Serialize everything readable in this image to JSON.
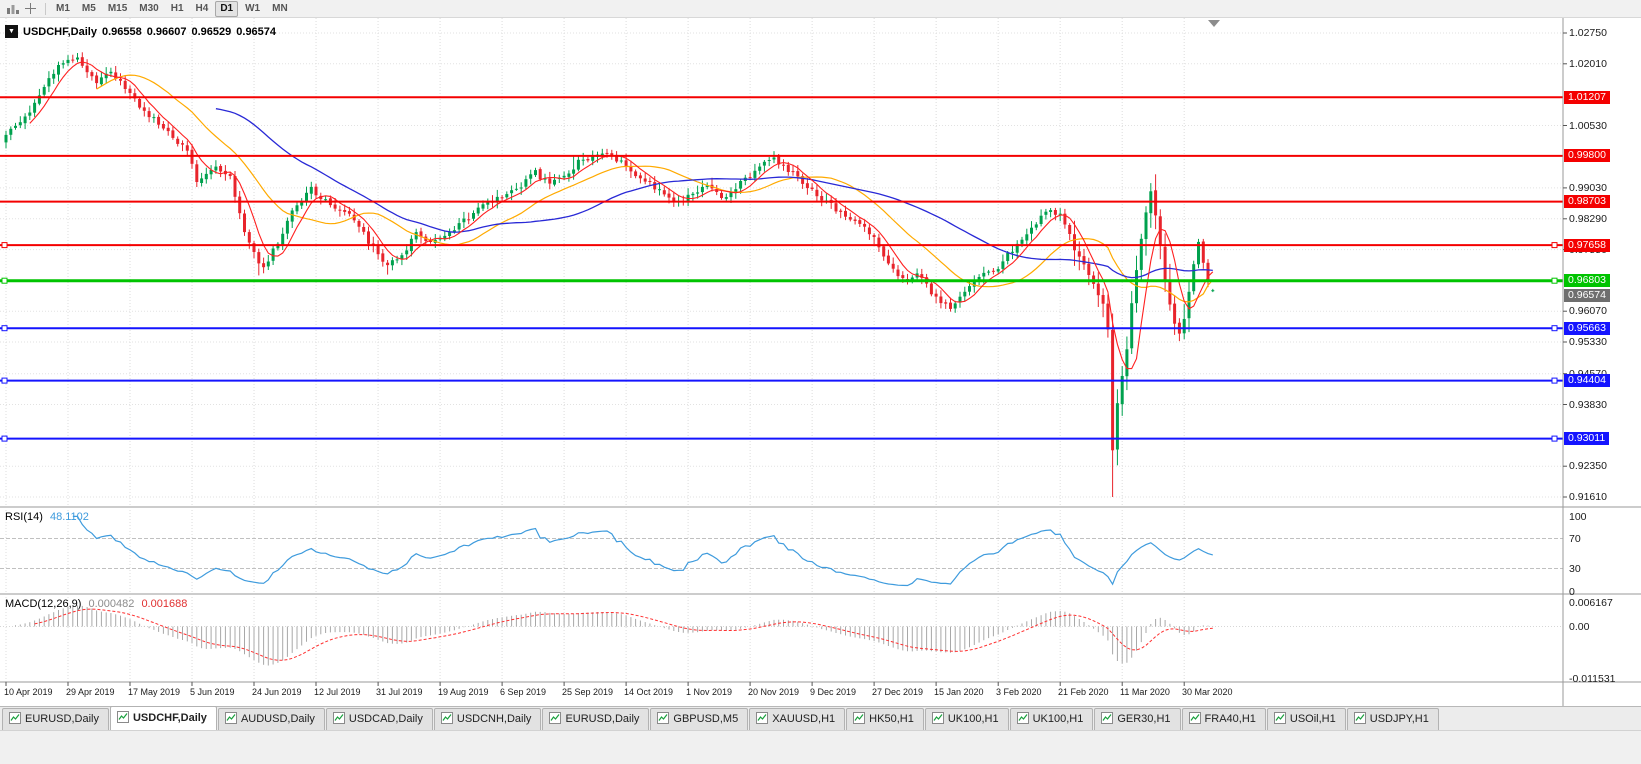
{
  "toolbar": {
    "timeframes": [
      "M1",
      "M5",
      "M15",
      "M30",
      "H1",
      "H4",
      "D1",
      "W1",
      "MN"
    ],
    "active_timeframe": "D1"
  },
  "chart": {
    "symbol_period": "USDCHF,Daily",
    "open": "0.96558",
    "high": "0.96607",
    "low": "0.96529",
    "close": "0.96574",
    "current_price": 0.96574,
    "current_price_label": "0.96574",
    "current_price_color": "#6e6e6e",
    "up_color": "#00a14e",
    "down_color": "#e8242c",
    "ma_colors": {
      "fast": "#ff2020",
      "medium": "#ffaa00",
      "slow": "#2929d6"
    },
    "price_axis_ticks": [
      {
        "label": "1.02750",
        "value": 1.0275
      },
      {
        "label": "1.02010",
        "value": 1.0201
      },
      {
        "label": "1.00530",
        "value": 1.0053
      },
      {
        "label": "0.99030",
        "value": 0.9903
      },
      {
        "label": "0.98290",
        "value": 0.9829
      },
      {
        "label": "0.97550",
        "value": 0.9755
      },
      {
        "label": "0.96070",
        "value": 0.9607
      },
      {
        "label": "0.95330",
        "value": 0.9533
      },
      {
        "label": "0.94570",
        "value": 0.9457
      },
      {
        "label": "0.93830",
        "value": 0.9383
      },
      {
        "label": "0.92350",
        "value": 0.9235
      },
      {
        "label": "0.91610",
        "value": 0.9161
      }
    ],
    "hlines": [
      {
        "label": "1.01207",
        "price": 1.01207,
        "color": "#f40000",
        "thickness": 2,
        "selected": false
      },
      {
        "label": "0.99800",
        "price": 0.998,
        "color": "#f40000",
        "thickness": 2,
        "selected": false
      },
      {
        "label": "0.98703",
        "price": 0.98703,
        "color": "#f40000",
        "thickness": 2,
        "selected": false
      },
      {
        "label": "0.97658",
        "price": 0.97658,
        "color": "#f40000",
        "thickness": 2,
        "selected": true
      },
      {
        "label": "0.96803",
        "price": 0.96803,
        "color": "#00c400",
        "thickness": 3,
        "selected": true
      },
      {
        "label": "0.95663",
        "price": 0.95663,
        "color": "#1414ff",
        "thickness": 2,
        "selected": true
      },
      {
        "label": "0.94404",
        "price": 0.94404,
        "color": "#1414ff",
        "thickness": 2,
        "selected": true
      },
      {
        "label": "0.93011",
        "price": 0.93011,
        "color": "#1414ff",
        "thickness": 2,
        "selected": true
      }
    ],
    "dates": [
      "10 Apr 2019",
      "29 Apr 2019",
      "17 May 2019",
      "5 Jun 2019",
      "24 Jun 2019",
      "12 Jul 2019",
      "31 Jul 2019",
      "19 Aug 2019",
      "6 Sep 2019",
      "25 Sep 2019",
      "14 Oct 2019",
      "1 Nov 2019",
      "20 Nov 2019",
      "9 Dec 2019",
      "27 Dec 2019",
      "15 Jan 2020",
      "3 Feb 2020",
      "21 Feb 2020",
      "11 Mar 2020",
      "30 Mar 2020"
    ]
  },
  "chart_data": {
    "type": "candlestick",
    "symbol": "USDCHF",
    "period": "Daily",
    "days_per_tick": 13,
    "total_days": 254,
    "last_candle": {
      "o": 0.96558,
      "h": 0.96607,
      "l": 0.96529,
      "c": 0.96574
    },
    "price_anchors": [
      [
        0,
        1.0035
      ],
      [
        4,
        1.007
      ],
      [
        8,
        1.015
      ],
      [
        11,
        1.0195
      ],
      [
        15,
        1.0215
      ],
      [
        19,
        1.015
      ],
      [
        22,
        1.0185
      ],
      [
        26,
        1.013
      ],
      [
        30,
        1.0075
      ],
      [
        34,
        1.004
      ],
      [
        38,
        0.999
      ],
      [
        40,
        0.992
      ],
      [
        44,
        0.9955
      ],
      [
        47,
        0.993
      ],
      [
        50,
        0.98
      ],
      [
        52,
        0.9745
      ],
      [
        54,
        0.9712
      ],
      [
        57,
        0.977
      ],
      [
        60,
        0.9855
      ],
      [
        64,
        0.99
      ],
      [
        69,
        0.9855
      ],
      [
        73,
        0.983
      ],
      [
        76,
        0.9775
      ],
      [
        78,
        0.9745
      ],
      [
        80,
        0.9712
      ],
      [
        83,
        0.9745
      ],
      [
        86,
        0.979
      ],
      [
        89,
        0.977
      ],
      [
        91,
        0.9785
      ],
      [
        95,
        0.9815
      ],
      [
        99,
        0.985
      ],
      [
        104,
        0.9885
      ],
      [
        108,
        0.991
      ],
      [
        111,
        0.994
      ],
      [
        114,
        0.991
      ],
      [
        117,
        0.993
      ],
      [
        120,
        0.9965
      ],
      [
        124,
        0.998
      ],
      [
        127,
        0.9983
      ],
      [
        131,
        0.9945
      ],
      [
        134,
        0.992
      ],
      [
        138,
        0.989
      ],
      [
        141,
        0.9865
      ],
      [
        143,
        0.9885
      ],
      [
        147,
        0.991
      ],
      [
        150,
        0.9875
      ],
      [
        153,
        0.9905
      ],
      [
        156,
        0.993
      ],
      [
        159,
        0.9965
      ],
      [
        161,
        0.9975
      ],
      [
        164,
        0.9945
      ],
      [
        167,
        0.9915
      ],
      [
        169,
        0.99
      ],
      [
        172,
        0.987
      ],
      [
        175,
        0.9845
      ],
      [
        178,
        0.982
      ],
      [
        182,
        0.979
      ],
      [
        185,
        0.972
      ],
      [
        188,
        0.968
      ],
      [
        191,
        0.97
      ],
      [
        195,
        0.9635
      ],
      [
        198,
        0.9615
      ],
      [
        201,
        0.965
      ],
      [
        204,
        0.9685
      ],
      [
        208,
        0.9715
      ],
      [
        212,
        0.977
      ],
      [
        216,
        0.982
      ],
      [
        219,
        0.985
      ],
      [
        221,
        0.984
      ],
      [
        224,
        0.976
      ],
      [
        227,
        0.969
      ],
      [
        230,
        0.963
      ],
      [
        231,
        0.956
      ],
      [
        232,
        0.928
      ],
      [
        233,
        0.939
      ],
      [
        234,
        0.945
      ],
      [
        235,
        0.952
      ],
      [
        236,
        0.962
      ],
      [
        237,
        0.97
      ],
      [
        238,
        0.978
      ],
      [
        239,
        0.985
      ],
      [
        240,
        0.989
      ],
      [
        241,
        0.984
      ],
      [
        242,
        0.976
      ],
      [
        243,
        0.968
      ],
      [
        244,
        0.962
      ],
      [
        245,
        0.9575
      ],
      [
        246,
        0.956
      ],
      [
        247,
        0.959
      ],
      [
        248,
        0.966
      ],
      [
        249,
        0.972
      ],
      [
        250,
        0.977
      ],
      [
        251,
        0.972
      ],
      [
        252,
        0.968
      ],
      [
        253,
        0.96574
      ]
    ],
    "wick_overrides": [
      {
        "day": 13,
        "high": 1.0222
      },
      {
        "day": 15,
        "high": 1.0227
      },
      {
        "day": 53,
        "low": 0.9693
      },
      {
        "day": 54,
        "low": 0.9698
      },
      {
        "day": 80,
        "low": 0.9695
      },
      {
        "day": 119,
        "high": 0.9979
      },
      {
        "day": 127,
        "high": 0.9988
      },
      {
        "day": 161,
        "high": 0.9985
      },
      {
        "day": 198,
        "low": 0.9613
      },
      {
        "day": 232,
        "low": 0.9161
      },
      {
        "day": 240,
        "high": 0.9901
      }
    ]
  },
  "rsi": {
    "name": "RSI(14)",
    "value": "48.1102",
    "period": 14,
    "color": "#3e9bdd",
    "upper_level": 70,
    "lower_level": 30,
    "axis": [
      {
        "label": "100",
        "value": 100
      },
      {
        "label": "70",
        "value": 70
      },
      {
        "label": "30",
        "value": 30
      },
      {
        "label": "0",
        "value": 0
      }
    ]
  },
  "macd": {
    "name": "MACD(12,26,9)",
    "main_value": "0.000482",
    "signal_value": "0.001688",
    "fast": 12,
    "slow": 26,
    "signal_period": 9,
    "main_color": "#a8a8a8",
    "signal_color": "#ff3030",
    "axis": [
      {
        "label": "0.006167",
        "value": 0.006167
      },
      {
        "label": "0.00",
        "value": 0
      },
      {
        "label": "-0.011531",
        "value": -0.011531
      }
    ]
  },
  "tabs": [
    {
      "label": "EURUSD,Daily",
      "active": false
    },
    {
      "label": "USDCHF,Daily",
      "active": true
    },
    {
      "label": "AUDUSD,Daily",
      "active": false
    },
    {
      "label": "USDCAD,Daily",
      "active": false
    },
    {
      "label": "USDCNH,Daily",
      "active": false
    },
    {
      "label": "EURUSD,Daily",
      "active": false
    },
    {
      "label": "GBPUSD,M5",
      "active": false
    },
    {
      "label": "XAUUSD,H1",
      "active": false
    },
    {
      "label": "HK50,H1",
      "active": false
    },
    {
      "label": "UK100,H1",
      "active": false
    },
    {
      "label": "UK100,H1",
      "active": false
    },
    {
      "label": "GER30,H1",
      "active": false
    },
    {
      "label": "FRA40,H1",
      "active": false
    },
    {
      "label": "USOil,H1",
      "active": false
    },
    {
      "label": "USDJPY,H1",
      "active": false
    }
  ]
}
